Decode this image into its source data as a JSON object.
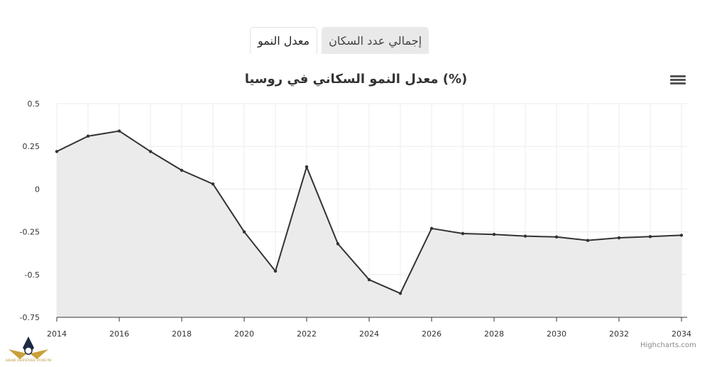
{
  "tabs": [
    {
      "label": "معدل النمو",
      "active": true
    },
    {
      "label": "إجمالي عدد السكان",
      "active": false
    }
  ],
  "menu": {
    "icon": "hamburger-menu-icon"
  },
  "credits": "Highcharts.com",
  "logo": {
    "text": "ARAB DEFENSE FORUM"
  },
  "colors": {
    "line": "#333333",
    "area": "#ebebeb",
    "grid": "#ececec"
  },
  "chart_data": {
    "type": "area",
    "title": "(%) معدل النمو السكاني في روسيا",
    "xlabel": "",
    "ylabel": "",
    "x": [
      2014,
      2015,
      2016,
      2017,
      2018,
      2019,
      2020,
      2021,
      2022,
      2023,
      2024,
      2025,
      2026,
      2027,
      2028,
      2029,
      2030,
      2031,
      2032,
      2033,
      2034
    ],
    "series": [
      {
        "values": [
          0.22,
          0.31,
          0.34,
          0.22,
          0.11,
          0.03,
          -0.25,
          -0.48,
          0.13,
          -0.32,
          -0.53,
          -0.61,
          -0.23,
          -0.26,
          -0.265,
          -0.275,
          -0.28,
          -0.3,
          -0.285,
          -0.278,
          -0.27
        ]
      }
    ],
    "xticks": [
      "2014",
      "2016",
      "2018",
      "2020",
      "2022",
      "2024",
      "2026",
      "2028",
      "2030",
      "2032",
      "2034"
    ],
    "yticks": [
      "0.5",
      "0.25",
      "0",
      "-0.25",
      "-0.5",
      "-0.75"
    ],
    "ylim": [
      -0.75,
      0.5
    ],
    "xlim": [
      2014,
      2034
    ],
    "grid": true,
    "legend": "none"
  }
}
